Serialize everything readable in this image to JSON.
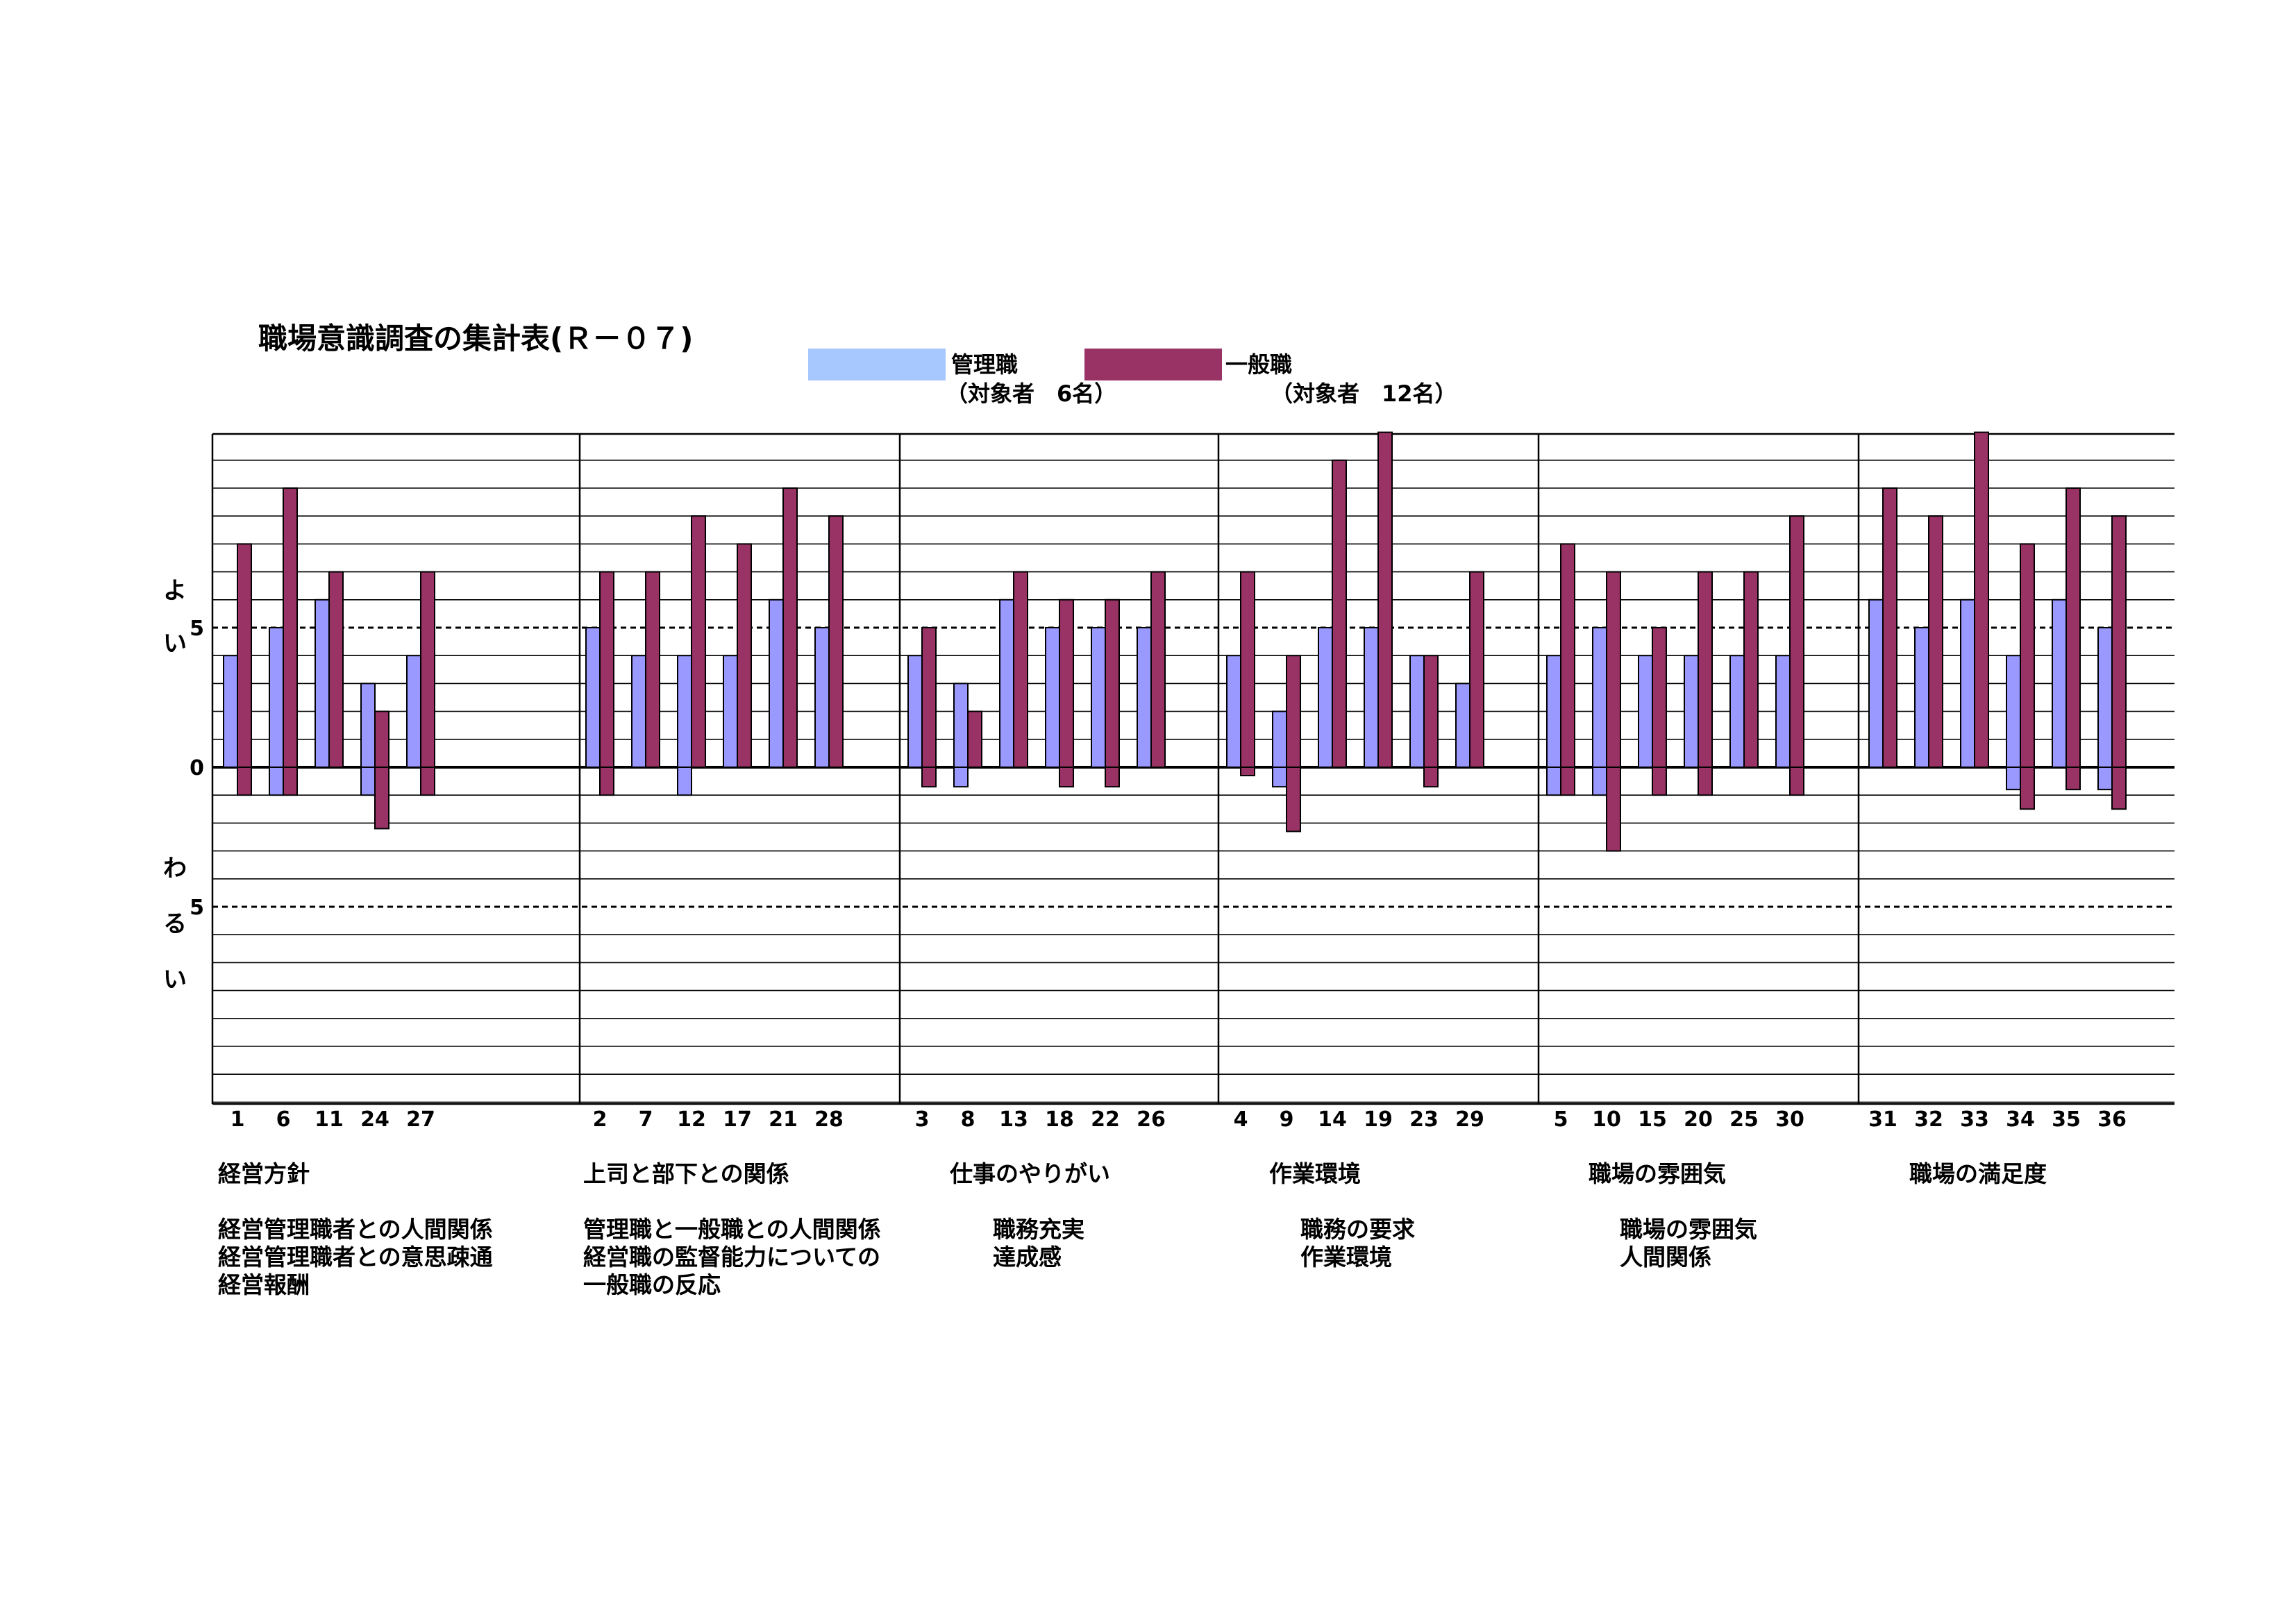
{
  "chart_data": {
    "type": "bar",
    "title": "職場意識調査の集計表(Ｒ－０７)",
    "legend": [
      {
        "name": "管理職",
        "note": "（対象者　6名）",
        "color": "#a6c8ff"
      },
      {
        "name": "一般職",
        "note": "（対象者　12名）",
        "color": "#993366"
      }
    ],
    "manager_bar_color": "#9999ff",
    "general_bar_color": "#993366",
    "y_axis": {
      "range": [
        -12,
        12
      ],
      "ticks": [
        {
          "value": 5,
          "label": "5"
        },
        {
          "value": 0,
          "label": "0"
        },
        {
          "value": -5,
          "label": "5"
        }
      ],
      "good_label": [
        "よ",
        "い"
      ],
      "bad_label": [
        "わ",
        "る",
        "い"
      ]
    },
    "groups": [
      {
        "category": "経営方針",
        "descriptions": [
          "経営管理職者との人間関係",
          "経営管理職者との意思疎通",
          "経営報酬"
        ],
        "questions": [
          "1",
          "6",
          "11",
          "24",
          "27"
        ],
        "manager_pos": [
          4,
          5,
          6,
          3,
          4
        ],
        "manager_neg": [
          0,
          -1,
          0,
          -1,
          0
        ],
        "general_pos": [
          8,
          10,
          7,
          2,
          7
        ],
        "general_neg": [
          -1,
          -1,
          0,
          -2.2,
          -1
        ]
      },
      {
        "category": "上司と部下との関係",
        "descriptions": [
          "管理職と一般職との人間関係",
          "経営職の監督能力についての",
          "一般職の反応"
        ],
        "questions": [
          "2",
          "7",
          "12",
          "17",
          "21",
          "28"
        ],
        "manager_pos": [
          5,
          4,
          4,
          4,
          6,
          5
        ],
        "manager_neg": [
          0,
          0,
          -1,
          0,
          0,
          0
        ],
        "general_pos": [
          7,
          7,
          9,
          8,
          10,
          9
        ],
        "general_neg": [
          -1,
          0,
          0,
          0,
          0,
          0
        ]
      },
      {
        "category": "仕事のやりがい",
        "descriptions": [
          "職務充実",
          "達成感"
        ],
        "questions": [
          "3",
          "8",
          "13",
          "18",
          "22",
          "26"
        ],
        "manager_pos": [
          4,
          3,
          6,
          5,
          5,
          5
        ],
        "manager_neg": [
          0,
          -0.7,
          0,
          0,
          0,
          0
        ],
        "general_pos": [
          5,
          2,
          7,
          6,
          6,
          7
        ],
        "general_neg": [
          -0.7,
          0,
          0,
          -0.7,
          -0.7,
          0
        ]
      },
      {
        "category": "作業環境",
        "descriptions": [
          "職務の要求",
          "作業環境"
        ],
        "questions": [
          "4",
          "9",
          "14",
          "19",
          "23",
          "29"
        ],
        "manager_pos": [
          4,
          2,
          5,
          5,
          4,
          3
        ],
        "manager_neg": [
          0,
          -0.7,
          0,
          0,
          0,
          0
        ],
        "general_pos": [
          7,
          4,
          11,
          12,
          4,
          7
        ],
        "general_neg": [
          -0.3,
          -2.3,
          0,
          0,
          -0.7,
          0
        ]
      },
      {
        "category": "職場の雰囲気",
        "descriptions": [
          "職場の雰囲気",
          "人間関係"
        ],
        "questions": [
          "5",
          "10",
          "15",
          "20",
          "25",
          "30"
        ],
        "manager_pos": [
          4,
          5,
          4,
          4,
          4,
          4
        ],
        "manager_neg": [
          -1,
          -1,
          0,
          0,
          0,
          0
        ],
        "general_pos": [
          8,
          7,
          5,
          7,
          7,
          9
        ],
        "general_neg": [
          -1,
          -3,
          -1,
          -1,
          0,
          -1
        ]
      },
      {
        "category": "職場の満足度",
        "descriptions": [],
        "questions": [
          "31",
          "32",
          "33",
          "34",
          "35",
          "36"
        ],
        "manager_pos": [
          6,
          5,
          6,
          4,
          6,
          5
        ],
        "manager_neg": [
          0,
          0,
          0,
          -0.8,
          0,
          -0.8
        ],
        "general_pos": [
          10,
          9,
          12,
          8,
          10,
          9
        ],
        "general_neg": [
          0,
          0,
          0,
          -1.5,
          -0.8,
          -1.5
        ]
      }
    ]
  }
}
